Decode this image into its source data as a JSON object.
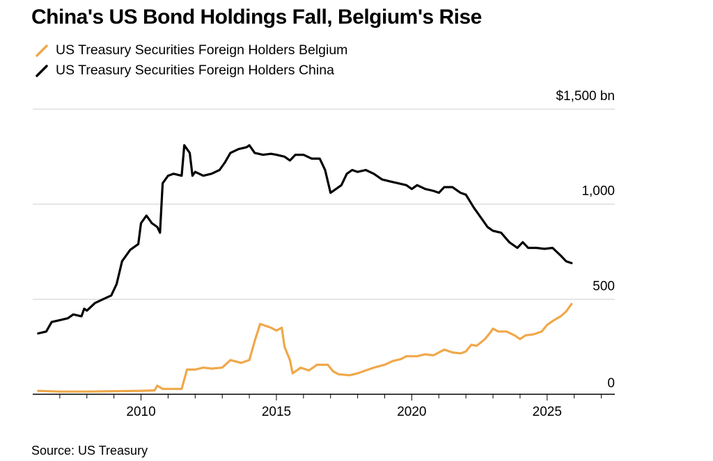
{
  "title": "China's US Bond Holdings Fall, Belgium's Rise",
  "source": "Source: US Treasury",
  "colors": {
    "belgium": "#f0a84a",
    "china": "#000000",
    "grid": "#cfcfcf",
    "axis": "#000000"
  },
  "chart_data": {
    "type": "line",
    "title": "China's US Bond Holdings Fall, Belgium's Rise",
    "ylabel": "$ bn",
    "ylim": [
      0,
      1500
    ],
    "xlim": [
      2006.0,
      2027.5
    ],
    "y_ticks": [
      {
        "value": 1500,
        "label": "$1,500 bn"
      },
      {
        "value": 1000,
        "label": "1,000"
      },
      {
        "value": 500,
        "label": "500"
      },
      {
        "value": 0,
        "label": "0"
      }
    ],
    "x_ticks": [
      {
        "value": 2010,
        "label": "2010"
      },
      {
        "value": 2015,
        "label": "2015"
      },
      {
        "value": 2020,
        "label": "2020"
      },
      {
        "value": 2025,
        "label": "2025"
      }
    ],
    "series": [
      {
        "name": "US Treasury Securities Foreign Holders Belgium",
        "key": "belgium",
        "points": [
          [
            2006.2,
            18
          ],
          [
            2007.0,
            14
          ],
          [
            2008.0,
            14
          ],
          [
            2009.0,
            16
          ],
          [
            2010.0,
            18
          ],
          [
            2010.5,
            20
          ],
          [
            2010.6,
            45
          ],
          [
            2010.8,
            28
          ],
          [
            2011.5,
            28
          ],
          [
            2011.7,
            130
          ],
          [
            2012.0,
            130
          ],
          [
            2012.3,
            140
          ],
          [
            2012.6,
            135
          ],
          [
            2013.0,
            140
          ],
          [
            2013.3,
            180
          ],
          [
            2013.7,
            165
          ],
          [
            2014.0,
            180
          ],
          [
            2014.2,
            280
          ],
          [
            2014.4,
            370
          ],
          [
            2014.8,
            350
          ],
          [
            2015.0,
            335
          ],
          [
            2015.2,
            350
          ],
          [
            2015.3,
            250
          ],
          [
            2015.5,
            180
          ],
          [
            2015.6,
            110
          ],
          [
            2015.9,
            140
          ],
          [
            2016.2,
            125
          ],
          [
            2016.5,
            155
          ],
          [
            2016.9,
            155
          ],
          [
            2017.1,
            120
          ],
          [
            2017.3,
            105
          ],
          [
            2017.7,
            100
          ],
          [
            2018.0,
            110
          ],
          [
            2018.3,
            125
          ],
          [
            2018.6,
            140
          ],
          [
            2019.0,
            155
          ],
          [
            2019.3,
            175
          ],
          [
            2019.6,
            185
          ],
          [
            2019.8,
            200
          ],
          [
            2020.2,
            200
          ],
          [
            2020.5,
            210
          ],
          [
            2020.8,
            205
          ],
          [
            2021.0,
            220
          ],
          [
            2021.2,
            235
          ],
          [
            2021.5,
            220
          ],
          [
            2021.8,
            215
          ],
          [
            2022.0,
            225
          ],
          [
            2022.2,
            260
          ],
          [
            2022.4,
            255
          ],
          [
            2022.7,
            290
          ],
          [
            2022.9,
            325
          ],
          [
            2023.0,
            345
          ],
          [
            2023.2,
            330
          ],
          [
            2023.5,
            330
          ],
          [
            2023.8,
            310
          ],
          [
            2024.0,
            290
          ],
          [
            2024.2,
            310
          ],
          [
            2024.5,
            315
          ],
          [
            2024.8,
            330
          ],
          [
            2025.0,
            365
          ],
          [
            2025.2,
            385
          ],
          [
            2025.5,
            410
          ],
          [
            2025.7,
            435
          ],
          [
            2025.9,
            475
          ]
        ]
      },
      {
        "name": "US Treasury Securities Foreign Holders China",
        "key": "china",
        "points": [
          [
            2006.2,
            320
          ],
          [
            2006.5,
            330
          ],
          [
            2006.7,
            380
          ],
          [
            2007.0,
            390
          ],
          [
            2007.3,
            400
          ],
          [
            2007.5,
            420
          ],
          [
            2007.8,
            410
          ],
          [
            2007.9,
            450
          ],
          [
            2008.0,
            440
          ],
          [
            2008.3,
            480
          ],
          [
            2008.6,
            500
          ],
          [
            2008.9,
            520
          ],
          [
            2009.1,
            580
          ],
          [
            2009.3,
            700
          ],
          [
            2009.6,
            760
          ],
          [
            2009.9,
            790
          ],
          [
            2010.0,
            900
          ],
          [
            2010.2,
            940
          ],
          [
            2010.4,
            900
          ],
          [
            2010.6,
            880
          ],
          [
            2010.7,
            850
          ],
          [
            2010.8,
            1110
          ],
          [
            2011.0,
            1150
          ],
          [
            2011.2,
            1160
          ],
          [
            2011.5,
            1150
          ],
          [
            2011.6,
            1310
          ],
          [
            2011.8,
            1270
          ],
          [
            2011.9,
            1150
          ],
          [
            2012.0,
            1170
          ],
          [
            2012.3,
            1150
          ],
          [
            2012.6,
            1160
          ],
          [
            2012.9,
            1180
          ],
          [
            2013.1,
            1220
          ],
          [
            2013.3,
            1270
          ],
          [
            2013.6,
            1290
          ],
          [
            2013.9,
            1300
          ],
          [
            2014.0,
            1310
          ],
          [
            2014.2,
            1270
          ],
          [
            2014.5,
            1260
          ],
          [
            2014.8,
            1265
          ],
          [
            2015.0,
            1260
          ],
          [
            2015.3,
            1250
          ],
          [
            2015.5,
            1230
          ],
          [
            2015.7,
            1260
          ],
          [
            2016.0,
            1260
          ],
          [
            2016.3,
            1240
          ],
          [
            2016.6,
            1240
          ],
          [
            2016.8,
            1180
          ],
          [
            2017.0,
            1060
          ],
          [
            2017.2,
            1080
          ],
          [
            2017.4,
            1100
          ],
          [
            2017.6,
            1160
          ],
          [
            2017.8,
            1180
          ],
          [
            2018.0,
            1170
          ],
          [
            2018.3,
            1180
          ],
          [
            2018.6,
            1160
          ],
          [
            2018.9,
            1130
          ],
          [
            2019.2,
            1120
          ],
          [
            2019.5,
            1110
          ],
          [
            2019.8,
            1100
          ],
          [
            2020.0,
            1080
          ],
          [
            2020.2,
            1100
          ],
          [
            2020.5,
            1080
          ],
          [
            2020.8,
            1070
          ],
          [
            2021.0,
            1060
          ],
          [
            2021.2,
            1090
          ],
          [
            2021.5,
            1090
          ],
          [
            2021.8,
            1060
          ],
          [
            2022.0,
            1050
          ],
          [
            2022.3,
            980
          ],
          [
            2022.6,
            920
          ],
          [
            2022.8,
            880
          ],
          [
            2023.0,
            860
          ],
          [
            2023.3,
            850
          ],
          [
            2023.6,
            800
          ],
          [
            2023.9,
            770
          ],
          [
            2024.1,
            800
          ],
          [
            2024.3,
            770
          ],
          [
            2024.6,
            770
          ],
          [
            2024.9,
            765
          ],
          [
            2025.2,
            770
          ],
          [
            2025.5,
            730
          ],
          [
            2025.7,
            700
          ],
          [
            2025.9,
            690
          ]
        ]
      }
    ]
  }
}
